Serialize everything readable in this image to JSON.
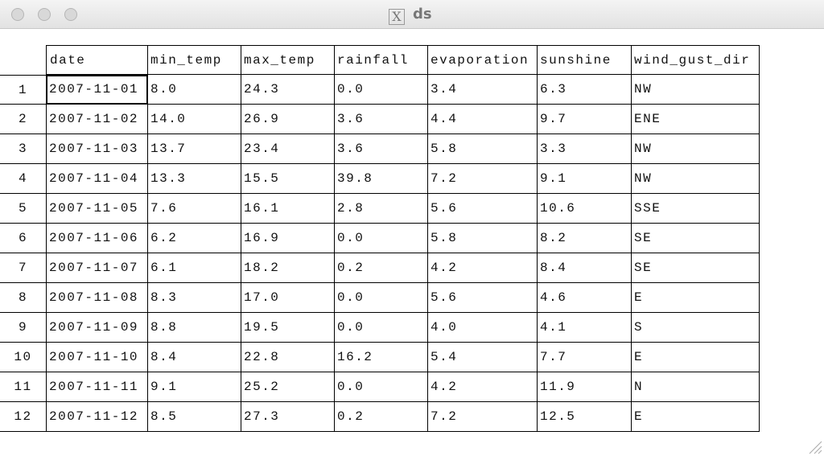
{
  "window": {
    "title": "ds"
  },
  "table": {
    "columns": [
      "date",
      "min_temp",
      "max_temp",
      "rainfall",
      "evaporation",
      "sunshine",
      "wind_gust_dir"
    ],
    "row_labels": [
      "1",
      "2",
      "3",
      "4",
      "5",
      "6",
      "7",
      "8",
      "9",
      "10",
      "11",
      "12"
    ],
    "rows": [
      [
        "2007-11-01",
        "8.0",
        "24.3",
        "0.0",
        "3.4",
        "6.3",
        "NW"
      ],
      [
        "2007-11-02",
        "14.0",
        "26.9",
        "3.6",
        "4.4",
        "9.7",
        "ENE"
      ],
      [
        "2007-11-03",
        "13.7",
        "23.4",
        "3.6",
        "5.8",
        "3.3",
        "NW"
      ],
      [
        "2007-11-04",
        "13.3",
        "15.5",
        "39.8",
        "7.2",
        "9.1",
        "NW"
      ],
      [
        "2007-11-05",
        "7.6",
        "16.1",
        "2.8",
        "5.6",
        "10.6",
        "SSE"
      ],
      [
        "2007-11-06",
        "6.2",
        "16.9",
        "0.0",
        "5.8",
        "8.2",
        "SE"
      ],
      [
        "2007-11-07",
        "6.1",
        "18.2",
        "0.2",
        "4.2",
        "8.4",
        "SE"
      ],
      [
        "2007-11-08",
        "8.3",
        "17.0",
        "0.0",
        "5.6",
        "4.6",
        "E"
      ],
      [
        "2007-11-09",
        "8.8",
        "19.5",
        "0.0",
        "4.0",
        "4.1",
        "S"
      ],
      [
        "2007-11-10",
        "8.4",
        "22.8",
        "16.2",
        "5.4",
        "7.7",
        "E"
      ],
      [
        "2007-11-11",
        "9.1",
        "25.2",
        "0.0",
        "4.2",
        "11.9",
        "N"
      ],
      [
        "2007-11-12",
        "8.5",
        "27.3",
        "0.2",
        "7.2",
        "12.5",
        "E"
      ]
    ]
  }
}
